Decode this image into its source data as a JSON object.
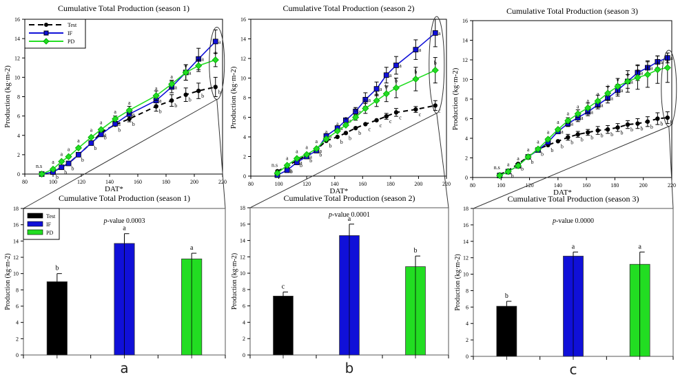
{
  "colors": {
    "Test": "#000000",
    "IF": "#1010d8",
    "PD": "#22dd22"
  },
  "legend": [
    "Test",
    "IF",
    "PD"
  ],
  "chart_data": [
    {
      "type": "line",
      "title": "Cumulative Total Production (season 1)",
      "xlabel": "DAT*",
      "ylabel": "Production (kg·m-2)",
      "xlim": [
        80,
        220
      ],
      "ylim": [
        0,
        16
      ],
      "xticks": [
        80,
        100,
        120,
        140,
        160,
        180,
        200,
        220
      ],
      "yticks": [
        0,
        2,
        4,
        6,
        8,
        10,
        12,
        14,
        16
      ],
      "legend_position": "top-left",
      "x": [
        92,
        100,
        106,
        111,
        118,
        127,
        134,
        144,
        154,
        173,
        184,
        194,
        203,
        215
      ],
      "series": [
        {
          "name": "Test",
          "values": [
            0,
            0.2,
            0.7,
            1.1,
            2.0,
            3.2,
            4.3,
            5.1,
            5.7,
            7.0,
            7.6,
            8.2,
            8.6,
            9.0
          ],
          "err": [
            0,
            0,
            0,
            0,
            0,
            0,
            0,
            0,
            0.3,
            0.5,
            0.6,
            0.7,
            0.8,
            1.0
          ]
        },
        {
          "name": "IF",
          "values": [
            0,
            0.2,
            0.7,
            1.1,
            2.0,
            3.2,
            4.1,
            5.2,
            6.2,
            7.6,
            9.0,
            10.5,
            11.9,
            13.7
          ],
          "err": [
            0,
            0,
            0,
            0,
            0,
            0,
            0,
            0,
            0,
            0,
            0.6,
            0.8,
            1.1,
            1.2
          ]
        },
        {
          "name": "PD",
          "values": [
            0,
            0.5,
            1.3,
            1.8,
            2.7,
            3.8,
            4.6,
            5.7,
            6.6,
            8.1,
            9.3,
            10.5,
            11.2,
            11.8
          ],
          "err": [
            0,
            0,
            0,
            0,
            0,
            0,
            0,
            0.3,
            0.4,
            0.5,
            0.4,
            0.8,
            0.6,
            0.7
          ]
        }
      ],
      "annotations": [
        "n.s",
        "a",
        "b",
        "a",
        "b",
        "a",
        "b",
        "a",
        "b",
        "a",
        "b",
        "a",
        "ab",
        "a",
        "b",
        "ab",
        "a",
        "b",
        "ab",
        "a",
        "ab",
        "b",
        "a",
        "a",
        "b",
        "a",
        "a",
        "b",
        "a",
        "a",
        "b"
      ]
    },
    {
      "type": "line",
      "title": "Cumulative Total Production (season 2)",
      "xlabel": "DAT*",
      "ylabel": "Production (kg·m-2)",
      "xlim": [
        80,
        220
      ],
      "ylim": [
        0,
        16
      ],
      "xticks": [
        80,
        100,
        120,
        140,
        160,
        180,
        200,
        220
      ],
      "yticks": [
        0,
        2,
        4,
        6,
        8,
        10,
        12,
        14,
        16
      ],
      "x": [
        99,
        106,
        113,
        120,
        127,
        134,
        142,
        148,
        155,
        162,
        170,
        177,
        184,
        198,
        212
      ],
      "series": [
        {
          "name": "Test",
          "values": [
            0.5,
            1.0,
            1.6,
            2.1,
            2.7,
            3.6,
            4.0,
            4.4,
            4.9,
            5.3,
            5.7,
            6.1,
            6.5,
            6.8,
            7.2
          ],
          "err": [
            0,
            0,
            0,
            0,
            0,
            0,
            0,
            0,
            0,
            0,
            0,
            0.3,
            0.4,
            0.3,
            0.5
          ]
        },
        {
          "name": "IF",
          "values": [
            0.1,
            0.6,
            1.4,
            2.0,
            2.6,
            4.1,
            4.9,
            5.7,
            6.6,
            7.8,
            8.9,
            10.3,
            11.3,
            12.9,
            14.6
          ],
          "err": [
            0,
            0,
            0,
            0,
            0,
            0,
            0,
            0,
            0.4,
            0.7,
            0.7,
            0.8,
            0.9,
            1.0,
            1.4
          ]
        },
        {
          "name": "PD",
          "values": [
            0.3,
            1.1,
            1.8,
            2.2,
            2.8,
            3.8,
            4.6,
            5.2,
            6.0,
            6.9,
            7.7,
            8.4,
            9.0,
            9.9,
            10.8
          ],
          "err": [
            0,
            0,
            0,
            0,
            0,
            0,
            0,
            0,
            0.3,
            0.5,
            0.6,
            0.8,
            1.0,
            1.2,
            1.3
          ]
        }
      ],
      "annotations": [
        "a",
        "ab",
        "b",
        "a",
        "b",
        "a",
        "b",
        "n.s",
        "n.s",
        "a",
        "b",
        "ab",
        "a",
        "b",
        "a",
        "b",
        "a",
        "b",
        "a",
        "c",
        "a",
        "b",
        "c",
        "a",
        "b",
        "c",
        "a",
        "b",
        "c",
        "a",
        "b",
        "c"
      ]
    },
    {
      "type": "line",
      "title": "Cumulative Total Production (season 3)",
      "xlabel": "DAT*",
      "ylabel": "Production (kg·m-2)",
      "xlim": [
        80,
        220
      ],
      "ylim": [
        0,
        16
      ],
      "xticks": [
        80,
        100,
        120,
        140,
        160,
        180,
        200,
        220
      ],
      "yticks": [
        0,
        2,
        4,
        6,
        8,
        10,
        12,
        14,
        16
      ],
      "x": [
        99,
        105,
        112,
        119,
        126,
        133,
        140,
        147,
        154,
        161,
        168,
        175,
        182,
        189,
        196,
        203,
        210,
        217
      ],
      "series": [
        {
          "name": "Test",
          "values": [
            0.3,
            0.7,
            1.4,
            2.1,
            2.9,
            3.3,
            3.7,
            4.1,
            4.4,
            4.6,
            4.8,
            4.9,
            5.1,
            5.4,
            5.5,
            5.7,
            6.0,
            6.1
          ],
          "err": [
            0,
            0,
            0,
            0,
            0,
            0,
            0,
            0.3,
            0.3,
            0.3,
            0.4,
            0.4,
            0.4,
            0.4,
            0.5,
            0.5,
            0.6,
            0.6
          ]
        },
        {
          "name": "IF",
          "values": [
            0.2,
            0.6,
            1.2,
            2.1,
            2.8,
            3.6,
            4.7,
            5.5,
            6.1,
            6.7,
            7.4,
            8.1,
            8.9,
            9.8,
            10.7,
            11.2,
            11.8,
            12.2
          ],
          "err": [
            0,
            0,
            0,
            0,
            0,
            0,
            0,
            0.3,
            0.4,
            0.4,
            0.4,
            0.5,
            0.6,
            0.7,
            0.8,
            0.7,
            0.6,
            0.5
          ]
        },
        {
          "name": "PD",
          "values": [
            0.2,
            0.6,
            1.2,
            2.1,
            2.9,
            3.9,
            4.9,
            5.8,
            6.5,
            7.1,
            7.8,
            8.6,
            9.3,
            9.8,
            10.2,
            10.5,
            11.0,
            11.2
          ],
          "err": [
            0,
            0,
            0,
            0,
            0,
            0,
            0,
            0.3,
            0.4,
            0.5,
            0.6,
            0.7,
            0.8,
            1.1,
            1.2,
            1.3,
            1.4,
            1.5
          ]
        }
      ],
      "annotations": [
        "n.s",
        "n.s",
        "n.s",
        "n.s",
        "n.s",
        "a",
        "b",
        "a",
        "b",
        "a",
        "b",
        "a",
        "b",
        "a",
        "b",
        "a",
        "b",
        "a",
        "b",
        "a",
        "b",
        "a",
        "b",
        "a",
        "b",
        "a",
        "b",
        "a",
        "b",
        "a",
        "b",
        "a",
        "b"
      ]
    },
    {
      "type": "bar",
      "title": "Cumulative Total Production (season 1)",
      "ylabel": "Production (kg·m-2)",
      "ylim": [
        0,
        18
      ],
      "yticks": [
        0,
        2,
        4,
        6,
        8,
        10,
        12,
        14,
        16,
        18
      ],
      "categories": [
        "Test",
        "IF",
        "PD"
      ],
      "values": [
        9.0,
        13.7,
        11.8
      ],
      "errors": [
        1.0,
        1.2,
        0.7
      ],
      "letters": [
        "b",
        "a",
        "a"
      ],
      "pvalue": "0.0003",
      "legend_position": "top-left",
      "panel_label": "a"
    },
    {
      "type": "bar",
      "title": "Cumulative Total Production (season 2)",
      "ylabel": "Production (kg·m-2)",
      "ylim": [
        0,
        18
      ],
      "yticks": [
        0,
        2,
        4,
        6,
        8,
        10,
        12,
        14,
        16,
        18
      ],
      "categories": [
        "Test",
        "IF",
        "PD"
      ],
      "values": [
        7.2,
        14.6,
        10.8
      ],
      "errors": [
        0.5,
        1.4,
        1.3
      ],
      "letters": [
        "c",
        "a",
        "b"
      ],
      "pvalue": "0.0001",
      "panel_label": "b"
    },
    {
      "type": "bar",
      "title": "Cumulative Total Production (season 3)",
      "ylabel": "Production (kg·m-2)",
      "ylim": [
        0,
        18
      ],
      "yticks": [
        0,
        2,
        4,
        6,
        8,
        10,
        12,
        14,
        16,
        18
      ],
      "categories": [
        "Test",
        "IF",
        "PD"
      ],
      "values": [
        6.1,
        12.2,
        11.2
      ],
      "errors": [
        0.6,
        0.5,
        1.5
      ],
      "letters": [
        "b",
        "a",
        "a"
      ],
      "pvalue": "0.0000",
      "panel_label": "c"
    }
  ],
  "pvalue_prefix": "p",
  "pvalue_suffix": "-value "
}
